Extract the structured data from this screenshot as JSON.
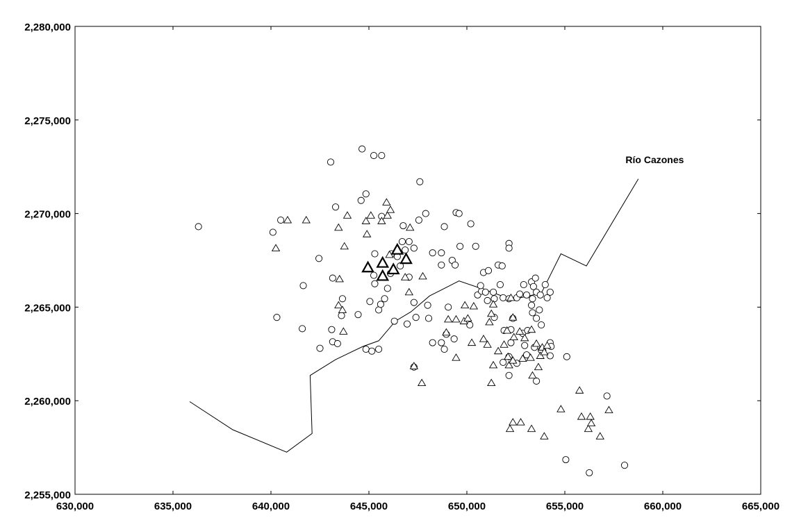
{
  "chart_data": {
    "type": "scatter",
    "title": "",
    "xlabel": "",
    "ylabel": "",
    "xlim": [
      630000,
      665000
    ],
    "ylim": [
      2255000,
      2280000
    ],
    "grid": false,
    "x_ticks": [
      630000,
      635000,
      640000,
      645000,
      650000,
      655000,
      660000,
      665000
    ],
    "y_ticks": [
      2255000,
      2260000,
      2265000,
      2270000,
      2275000,
      2280000
    ],
    "x_tick_labels": [
      "630,000",
      "635,000",
      "640,000",
      "645,000",
      "650,000",
      "655,000",
      "660,000",
      "665,000"
    ],
    "y_tick_labels": [
      "2,255,000",
      "2,260,000",
      "2,265,000",
      "2,270,000",
      "2,275,000",
      "2,280,000"
    ],
    "annotations": [
      {
        "text": "Río Cazones",
        "x": 658100,
        "y": 2272700
      }
    ],
    "river": [
      [
        635850,
        2259950
      ],
      [
        638050,
        2258450
      ],
      [
        640800,
        2257250
      ],
      [
        642100,
        2258250
      ],
      [
        642000,
        2261350
      ],
      [
        643300,
        2262200
      ],
      [
        644700,
        2262900
      ],
      [
        645500,
        2263200
      ],
      [
        646350,
        2264250
      ],
      [
        647150,
        2264750
      ],
      [
        648100,
        2265600
      ],
      [
        649600,
        2266400
      ],
      [
        651000,
        2265900
      ],
      [
        652300,
        2265400
      ],
      [
        653800,
        2265750
      ],
      [
        654800,
        2267850
      ],
      [
        656100,
        2267200
      ],
      [
        658750,
        2271850
      ]
    ],
    "series": [
      {
        "marker": "circle",
        "points": [
          [
            636300,
            2269300
          ],
          [
            640100,
            2269000
          ],
          [
            640500,
            2269650
          ],
          [
            640300,
            2264450
          ],
          [
            641650,
            2266150
          ],
          [
            641600,
            2263850
          ],
          [
            642450,
            2267600
          ],
          [
            642500,
            2262800
          ],
          [
            643050,
            2272750
          ],
          [
            643300,
            2270350
          ],
          [
            643150,
            2266550
          ],
          [
            643100,
            2263800
          ],
          [
            643150,
            2263150
          ],
          [
            643400,
            2263050
          ],
          [
            643650,
            2265450
          ],
          [
            643600,
            2264550
          ],
          [
            644450,
            2264600
          ],
          [
            644650,
            2273450
          ],
          [
            644600,
            2270700
          ],
          [
            644850,
            2271050
          ],
          [
            644850,
            2262750
          ],
          [
            645150,
            2262650
          ],
          [
            645050,
            2265300
          ],
          [
            645300,
            2267850
          ],
          [
            645250,
            2266700
          ],
          [
            645300,
            2266250
          ],
          [
            645500,
            2264850
          ],
          [
            645600,
            2265150
          ],
          [
            645500,
            2262750
          ],
          [
            645650,
            2273100
          ],
          [
            645250,
            2273100
          ],
          [
            645650,
            2269850
          ],
          [
            645800,
            2265450
          ],
          [
            645950,
            2266000
          ],
          [
            646100,
            2266800
          ],
          [
            646150,
            2267850
          ],
          [
            646300,
            2264250
          ],
          [
            646450,
            2267700
          ],
          [
            646600,
            2267200
          ],
          [
            646700,
            2268500
          ],
          [
            646850,
            2268050
          ],
          [
            646750,
            2269350
          ],
          [
            647050,
            2268500
          ],
          [
            647300,
            2268150
          ],
          [
            647050,
            2266600
          ],
          [
            646950,
            2264100
          ],
          [
            647300,
            2265250
          ],
          [
            647400,
            2264450
          ],
          [
            647300,
            2261800
          ],
          [
            647600,
            2271700
          ],
          [
            647550,
            2269650
          ],
          [
            647900,
            2270000
          ],
          [
            648000,
            2265100
          ],
          [
            648050,
            2264400
          ],
          [
            648250,
            2267900
          ],
          [
            648250,
            2263100
          ],
          [
            648700,
            2267900
          ],
          [
            648700,
            2267250
          ],
          [
            648700,
            2263100
          ],
          [
            648850,
            2262750
          ],
          [
            648850,
            2269300
          ],
          [
            648950,
            2263550
          ],
          [
            649050,
            2265000
          ],
          [
            649250,
            2267500
          ],
          [
            649450,
            2270050
          ],
          [
            649600,
            2270000
          ],
          [
            649400,
            2267250
          ],
          [
            649650,
            2268250
          ],
          [
            649350,
            2263300
          ],
          [
            650200,
            2269450
          ],
          [
            650450,
            2268250
          ],
          [
            650150,
            2264050
          ],
          [
            650550,
            2265650
          ],
          [
            650750,
            2265850
          ],
          [
            650850,
            2266850
          ],
          [
            650700,
            2266150
          ],
          [
            651100,
            2266950
          ],
          [
            650950,
            2265800
          ],
          [
            651050,
            2265350
          ],
          [
            651350,
            2265800
          ],
          [
            651400,
            2265450
          ],
          [
            651400,
            2264450
          ],
          [
            651600,
            2267250
          ],
          [
            651800,
            2267200
          ],
          [
            651700,
            2266200
          ],
          [
            651850,
            2265500
          ],
          [
            651900,
            2263750
          ],
          [
            651850,
            2262050
          ],
          [
            652150,
            2268400
          ],
          [
            652150,
            2268150
          ],
          [
            652150,
            2265450
          ],
          [
            652250,
            2263800
          ],
          [
            652250,
            2263100
          ],
          [
            652150,
            2262350
          ],
          [
            652150,
            2261350
          ],
          [
            652350,
            2264400
          ],
          [
            652550,
            2265500
          ],
          [
            652550,
            2262000
          ],
          [
            652700,
            2265700
          ],
          [
            652850,
            2263600
          ],
          [
            652950,
            2262950
          ],
          [
            652900,
            2266200
          ],
          [
            653050,
            2265650
          ],
          [
            653300,
            2266350
          ],
          [
            653400,
            2266100
          ],
          [
            653350,
            2265450
          ],
          [
            653300,
            2265100
          ],
          [
            653350,
            2264700
          ],
          [
            653500,
            2266550
          ],
          [
            653550,
            2265800
          ],
          [
            653550,
            2264400
          ],
          [
            653550,
            2261050
          ],
          [
            653750,
            2265650
          ],
          [
            653700,
            2264850
          ],
          [
            653800,
            2264050
          ],
          [
            654000,
            2266200
          ],
          [
            654100,
            2265500
          ],
          [
            654250,
            2265800
          ],
          [
            654250,
            2263100
          ],
          [
            654250,
            2262400
          ],
          [
            654300,
            2262900
          ],
          [
            653800,
            2262700
          ],
          [
            653450,
            2262850
          ],
          [
            653100,
            2263750
          ],
          [
            653050,
            2262450
          ],
          [
            655100,
            2262350
          ],
          [
            655050,
            2256850
          ],
          [
            656250,
            2256150
          ],
          [
            657150,
            2260250
          ],
          [
            658050,
            2256550
          ]
        ]
      },
      {
        "marker": "triangle",
        "points": [
          [
            640250,
            2268150
          ],
          [
            640850,
            2269650
          ],
          [
            641800,
            2269650
          ],
          [
            643450,
            2269250
          ],
          [
            643500,
            2266500
          ],
          [
            643450,
            2265100
          ],
          [
            643650,
            2264850
          ],
          [
            643700,
            2263700
          ],
          [
            643750,
            2268250
          ],
          [
            643900,
            2269900
          ],
          [
            644850,
            2269600
          ],
          [
            644900,
            2268900
          ],
          [
            645100,
            2269900
          ],
          [
            645650,
            2269600
          ],
          [
            645950,
            2269900
          ],
          [
            645900,
            2270600
          ],
          [
            646100,
            2270200
          ],
          [
            646050,
            2267800
          ],
          [
            646850,
            2266600
          ],
          [
            647100,
            2269250
          ],
          [
            647750,
            2266650
          ],
          [
            647300,
            2261850
          ],
          [
            647700,
            2260950
          ],
          [
            648950,
            2263650
          ],
          [
            649050,
            2264350
          ],
          [
            649450,
            2264350
          ],
          [
            649450,
            2262300
          ],
          [
            649850,
            2264250
          ],
          [
            649900,
            2265100
          ],
          [
            650050,
            2264400
          ],
          [
            650350,
            2265050
          ],
          [
            650250,
            2263100
          ],
          [
            650850,
            2263300
          ],
          [
            651050,
            2263000
          ],
          [
            651150,
            2264200
          ],
          [
            651250,
            2264650
          ],
          [
            651350,
            2265150
          ],
          [
            651350,
            2261900
          ],
          [
            651250,
            2260950
          ],
          [
            651600,
            2262650
          ],
          [
            651900,
            2263000
          ],
          [
            652050,
            2263750
          ],
          [
            652100,
            2262350
          ],
          [
            652150,
            2261900
          ],
          [
            652250,
            2265500
          ],
          [
            652350,
            2264450
          ],
          [
            652400,
            2263400
          ],
          [
            652350,
            2262150
          ],
          [
            652700,
            2263700
          ],
          [
            652850,
            2262250
          ],
          [
            652950,
            2263350
          ],
          [
            653250,
            2262300
          ],
          [
            653300,
            2263800
          ],
          [
            653350,
            2261350
          ],
          [
            653550,
            2263050
          ],
          [
            653650,
            2261800
          ],
          [
            653750,
            2262400
          ],
          [
            653850,
            2262850
          ],
          [
            653950,
            2262600
          ],
          [
            654100,
            2262950
          ],
          [
            652200,
            2258500
          ],
          [
            652350,
            2258850
          ],
          [
            652750,
            2258850
          ],
          [
            653300,
            2258500
          ],
          [
            653950,
            2258100
          ],
          [
            654800,
            2259550
          ],
          [
            655750,
            2260550
          ],
          [
            655850,
            2259150
          ],
          [
            656200,
            2258500
          ],
          [
            656300,
            2259150
          ],
          [
            656350,
            2258800
          ],
          [
            656800,
            2258100
          ],
          [
            657250,
            2259500
          ],
          [
            647050,
            2265800
          ]
        ]
      },
      {
        "marker": "triangle-bold",
        "points": [
          [
            644950,
            2267100
          ],
          [
            645700,
            2267350
          ],
          [
            645700,
            2266650
          ],
          [
            646250,
            2267000
          ],
          [
            646450,
            2268050
          ],
          [
            646900,
            2267550
          ]
        ]
      }
    ]
  }
}
